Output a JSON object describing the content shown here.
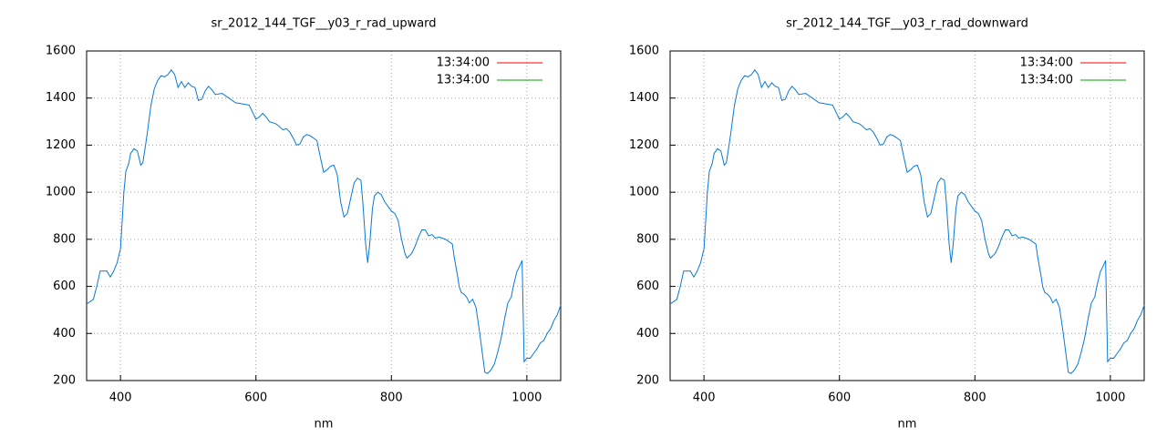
{
  "chart_data": [
    {
      "type": "line",
      "title": "sr_2012_144_TGF__y03_r_rad_upward",
      "xlabel": "nm",
      "x": [
        350,
        360,
        365,
        370,
        375,
        380,
        385,
        390,
        395,
        400,
        403,
        405,
        408,
        412,
        415,
        420,
        425,
        430,
        433,
        437,
        440,
        445,
        450,
        455,
        460,
        465,
        470,
        475,
        480,
        485,
        490,
        495,
        500,
        505,
        510,
        515,
        520,
        525,
        530,
        535,
        540,
        550,
        560,
        570,
        580,
        590,
        595,
        600,
        605,
        610,
        615,
        620,
        630,
        640,
        645,
        650,
        655,
        660,
        665,
        670,
        675,
        680,
        690,
        695,
        700,
        705,
        710,
        715,
        720,
        725,
        730,
        735,
        740,
        745,
        750,
        755,
        758,
        762,
        765,
        768,
        772,
        775,
        780,
        785,
        790,
        795,
        800,
        805,
        810,
        815,
        820,
        823,
        830,
        835,
        840,
        845,
        850,
        855,
        860,
        865,
        870,
        880,
        890,
        893,
        898,
        900,
        903,
        908,
        912,
        915,
        920,
        925,
        930,
        935,
        938,
        942,
        947,
        952,
        957,
        962,
        967,
        972,
        977,
        980,
        985,
        990,
        993,
        996,
        1000,
        1005,
        1010,
        1015,
        1020,
        1025,
        1030,
        1035,
        1040,
        1045,
        1050
      ],
      "series": [
        {
          "color": "#0a78d8",
          "values": [
            525,
            545,
            600,
            665,
            665,
            665,
            640,
            665,
            700,
            760,
            900,
            1000,
            1090,
            1120,
            1165,
            1185,
            1175,
            1115,
            1125,
            1200,
            1260,
            1370,
            1440,
            1475,
            1495,
            1490,
            1500,
            1520,
            1500,
            1445,
            1470,
            1445,
            1465,
            1450,
            1445,
            1390,
            1395,
            1430,
            1450,
            1435,
            1415,
            1420,
            1400,
            1380,
            1375,
            1370,
            1340,
            1310,
            1320,
            1335,
            1320,
            1300,
            1290,
            1265,
            1270,
            1255,
            1230,
            1200,
            1205,
            1235,
            1245,
            1240,
            1220,
            1150,
            1085,
            1095,
            1110,
            1115,
            1075,
            960,
            895,
            910,
            975,
            1040,
            1060,
            1050,
            950,
            780,
            700,
            780,
            930,
            985,
            1000,
            990,
            960,
            940,
            920,
            910,
            880,
            800,
            740,
            720,
            740,
            770,
            810,
            840,
            840,
            815,
            820,
            805,
            810,
            800,
            780,
            720,
            640,
            600,
            575,
            565,
            550,
            530,
            545,
            510,
            410,
            300,
            235,
            230,
            245,
            270,
            320,
            380,
            460,
            530,
            555,
            600,
            660,
            690,
            710,
            280,
            295,
            295,
            315,
            335,
            360,
            370,
            400,
            420,
            455,
            480,
            520
          ]
        }
      ],
      "legend_entries": [
        {
          "label": "13:34:00",
          "color": "#ff0000"
        },
        {
          "label": "13:34:00",
          "color": "#00a000"
        }
      ],
      "legend_position": "top-right",
      "xlim": [
        350,
        1050
      ],
      "ylim": [
        200,
        1600
      ],
      "xticks": [
        400,
        600,
        800,
        1000
      ],
      "yticks": [
        200,
        400,
        600,
        800,
        1000,
        1200,
        1400,
        1600
      ],
      "grid": true
    },
    {
      "type": "line",
      "title": "sr_2012_144_TGF__y03_r_rad_downward",
      "xlabel": "nm",
      "x": [
        350,
        360,
        365,
        370,
        375,
        380,
        385,
        390,
        395,
        400,
        403,
        405,
        408,
        412,
        415,
        420,
        425,
        430,
        433,
        437,
        440,
        445,
        450,
        455,
        460,
        465,
        470,
        475,
        480,
        485,
        490,
        495,
        500,
        505,
        510,
        515,
        520,
        525,
        530,
        535,
        540,
        550,
        560,
        570,
        580,
        590,
        595,
        600,
        605,
        610,
        615,
        620,
        630,
        640,
        645,
        650,
        655,
        660,
        665,
        670,
        675,
        680,
        690,
        695,
        700,
        705,
        710,
        715,
        720,
        725,
        730,
        735,
        740,
        745,
        750,
        755,
        758,
        762,
        765,
        768,
        772,
        775,
        780,
        785,
        790,
        795,
        800,
        805,
        810,
        815,
        820,
        823,
        830,
        835,
        840,
        845,
        850,
        855,
        860,
        865,
        870,
        880,
        890,
        893,
        898,
        900,
        903,
        908,
        912,
        915,
        920,
        925,
        930,
        935,
        938,
        942,
        947,
        952,
        957,
        962,
        967,
        972,
        977,
        980,
        985,
        990,
        993,
        996,
        1000,
        1005,
        1010,
        1015,
        1020,
        1025,
        1030,
        1035,
        1040,
        1045,
        1050
      ],
      "series": [
        {
          "color": "#0a78d8",
          "values": [
            525,
            545,
            600,
            665,
            665,
            665,
            640,
            665,
            700,
            760,
            900,
            1000,
            1090,
            1120,
            1165,
            1185,
            1175,
            1115,
            1125,
            1200,
            1260,
            1370,
            1440,
            1475,
            1495,
            1490,
            1500,
            1520,
            1500,
            1445,
            1470,
            1445,
            1465,
            1450,
            1445,
            1390,
            1395,
            1430,
            1450,
            1435,
            1415,
            1420,
            1400,
            1380,
            1375,
            1370,
            1340,
            1310,
            1320,
            1335,
            1320,
            1300,
            1290,
            1265,
            1270,
            1255,
            1230,
            1200,
            1205,
            1235,
            1245,
            1240,
            1220,
            1150,
            1085,
            1095,
            1110,
            1115,
            1075,
            960,
            895,
            910,
            975,
            1040,
            1060,
            1050,
            950,
            780,
            700,
            780,
            930,
            985,
            1000,
            990,
            960,
            940,
            920,
            910,
            880,
            800,
            740,
            720,
            740,
            770,
            810,
            840,
            840,
            815,
            820,
            805,
            810,
            800,
            780,
            720,
            640,
            600,
            575,
            565,
            550,
            530,
            545,
            510,
            410,
            300,
            235,
            230,
            245,
            270,
            320,
            380,
            460,
            530,
            555,
            600,
            660,
            690,
            710,
            280,
            295,
            295,
            315,
            335,
            360,
            370,
            400,
            420,
            455,
            480,
            520
          ]
        }
      ],
      "legend_entries": [
        {
          "label": "13:34:00",
          "color": "#ff0000"
        },
        {
          "label": "13:34:00",
          "color": "#00a000"
        }
      ],
      "legend_position": "top-right",
      "xlim": [
        350,
        1050
      ],
      "ylim": [
        200,
        1600
      ],
      "xticks": [
        400,
        600,
        800,
        1000
      ],
      "yticks": [
        200,
        400,
        600,
        800,
        1000,
        1200,
        1400,
        1600
      ],
      "grid": true
    }
  ]
}
